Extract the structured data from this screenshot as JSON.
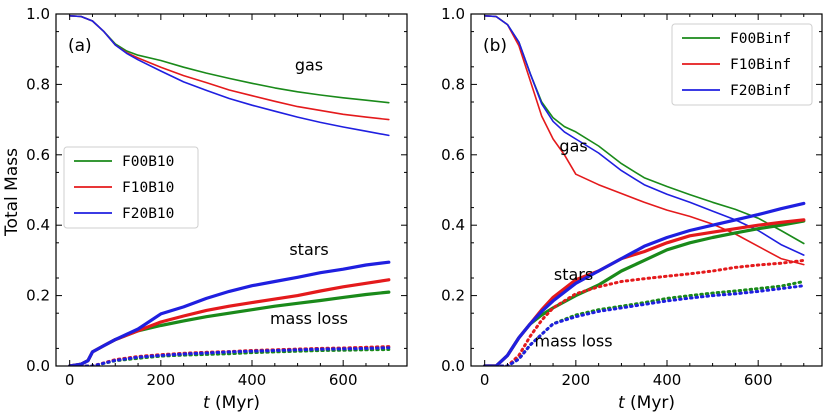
{
  "y_axis_label": "Total Mass",
  "colors": {
    "F00": "#1a8a1a",
    "F10": "#e41a1c",
    "F20": "#1f1fe0"
  },
  "chart_data": [
    {
      "type": "line",
      "panel_label": "(a)",
      "xlabel_var": "t",
      "xlabel_unit": " (Myr)",
      "ylabel": "Total Mass",
      "xlim": [
        -30,
        740
      ],
      "ylim": [
        0.0,
        1.0
      ],
      "xticks": [
        0,
        200,
        400,
        600
      ],
      "yticks": [
        0.0,
        0.2,
        0.4,
        0.6,
        0.8,
        1.0
      ],
      "legend": {
        "placement": "center-left",
        "entries": [
          "F00B10",
          "F10B10",
          "F20B10"
        ]
      },
      "annotations": [
        {
          "text": "gas",
          "x": 525,
          "y": 0.84
        },
        {
          "text": "stars",
          "x": 525,
          "y": 0.315
        },
        {
          "text": "mass loss",
          "x": 525,
          "y": 0.12
        }
      ],
      "series": [
        {
          "name": "F00B10 gas",
          "key": "F00",
          "style": "thin",
          "x": [
            0,
            25,
            50,
            75,
            100,
            125,
            150,
            200,
            250,
            300,
            350,
            400,
            450,
            500,
            550,
            600,
            650,
            700
          ],
          "y": [
            0.995,
            0.993,
            0.98,
            0.95,
            0.915,
            0.895,
            0.883,
            0.868,
            0.849,
            0.832,
            0.817,
            0.803,
            0.79,
            0.779,
            0.77,
            0.762,
            0.755,
            0.748
          ]
        },
        {
          "name": "F10B10 gas",
          "key": "F10",
          "style": "thin",
          "x": [
            0,
            25,
            50,
            75,
            100,
            125,
            150,
            200,
            250,
            300,
            350,
            400,
            450,
            500,
            550,
            600,
            650,
            700
          ],
          "y": [
            0.995,
            0.993,
            0.98,
            0.95,
            0.912,
            0.89,
            0.875,
            0.849,
            0.825,
            0.805,
            0.784,
            0.768,
            0.752,
            0.737,
            0.726,
            0.715,
            0.707,
            0.7
          ]
        },
        {
          "name": "F20B10 gas",
          "key": "F20",
          "style": "thin",
          "x": [
            0,
            25,
            50,
            75,
            100,
            125,
            150,
            200,
            250,
            300,
            350,
            400,
            450,
            500,
            550,
            600,
            650,
            700
          ],
          "y": [
            0.995,
            0.993,
            0.98,
            0.95,
            0.912,
            0.888,
            0.87,
            0.838,
            0.807,
            0.783,
            0.76,
            0.741,
            0.724,
            0.707,
            0.692,
            0.679,
            0.667,
            0.655
          ]
        },
        {
          "name": "F00B10 stars",
          "key": "F00",
          "style": "thick",
          "x": [
            0,
            25,
            40,
            50,
            75,
            100,
            150,
            200,
            250,
            300,
            350,
            400,
            450,
            500,
            550,
            600,
            650,
            700
          ],
          "y": [
            0.0,
            0.005,
            0.015,
            0.04,
            0.058,
            0.075,
            0.1,
            0.115,
            0.128,
            0.14,
            0.15,
            0.16,
            0.17,
            0.178,
            0.186,
            0.195,
            0.203,
            0.21
          ]
        },
        {
          "name": "F10B10 stars",
          "key": "F10",
          "style": "thick",
          "x": [
            0,
            25,
            40,
            50,
            75,
            100,
            150,
            200,
            250,
            300,
            350,
            400,
            450,
            500,
            550,
            600,
            650,
            700
          ],
          "y": [
            0.0,
            0.005,
            0.015,
            0.04,
            0.058,
            0.075,
            0.1,
            0.125,
            0.142,
            0.158,
            0.17,
            0.18,
            0.19,
            0.2,
            0.213,
            0.225,
            0.235,
            0.245
          ]
        },
        {
          "name": "F20B10 stars",
          "key": "F20",
          "style": "thick",
          "x": [
            0,
            25,
            40,
            50,
            75,
            100,
            150,
            200,
            250,
            300,
            350,
            400,
            450,
            500,
            550,
            600,
            650,
            700
          ],
          "y": [
            0.0,
            0.005,
            0.015,
            0.04,
            0.058,
            0.075,
            0.105,
            0.148,
            0.168,
            0.192,
            0.212,
            0.228,
            0.24,
            0.252,
            0.265,
            0.275,
            0.287,
            0.295
          ]
        },
        {
          "name": "F00B10 mass loss",
          "key": "F00",
          "style": "dotted",
          "x": [
            0,
            50,
            100,
            150,
            200,
            250,
            300,
            350,
            400,
            450,
            500,
            550,
            600,
            650,
            700
          ],
          "y": [
            0.0,
            0.0,
            0.015,
            0.022,
            0.028,
            0.031,
            0.033,
            0.035,
            0.038,
            0.04,
            0.042,
            0.044,
            0.045,
            0.046,
            0.047
          ]
        },
        {
          "name": "F10B10 mass loss",
          "key": "F10",
          "style": "dotted",
          "x": [
            0,
            50,
            100,
            150,
            200,
            250,
            300,
            350,
            400,
            450,
            500,
            550,
            600,
            650,
            700
          ],
          "y": [
            0.0,
            0.0,
            0.018,
            0.027,
            0.032,
            0.036,
            0.039,
            0.041,
            0.044,
            0.046,
            0.048,
            0.05,
            0.051,
            0.053,
            0.055
          ]
        },
        {
          "name": "F20B10 mass loss",
          "key": "F20",
          "style": "dotted",
          "x": [
            0,
            50,
            100,
            150,
            200,
            250,
            300,
            350,
            400,
            450,
            500,
            550,
            600,
            650,
            700
          ],
          "y": [
            0.0,
            0.0,
            0.016,
            0.025,
            0.03,
            0.034,
            0.037,
            0.04,
            0.042,
            0.044,
            0.046,
            0.048,
            0.049,
            0.05,
            0.052
          ]
        }
      ]
    },
    {
      "type": "line",
      "panel_label": "(b)",
      "xlabel_var": "t",
      "xlabel_unit": " (Myr)",
      "ylabel": "",
      "xlim": [
        -30,
        740
      ],
      "ylim": [
        0.0,
        1.0
      ],
      "xticks": [
        0,
        200,
        400,
        600
      ],
      "yticks": [
        0.0,
        0.2,
        0.4,
        0.6,
        0.8,
        1.0
      ],
      "legend": {
        "placement": "top-right",
        "entries": [
          "F00Binf",
          "F10Binf",
          "F20Binf"
        ]
      },
      "annotations": [
        {
          "text": "gas",
          "x": 195,
          "y": 0.61
        },
        {
          "text": "stars",
          "x": 195,
          "y": 0.245
        },
        {
          "text": "mass loss",
          "x": 195,
          "y": 0.055
        }
      ],
      "series": [
        {
          "name": "F00Binf gas",
          "key": "F00",
          "style": "thin",
          "x": [
            0,
            25,
            50,
            75,
            100,
            125,
            150,
            175,
            200,
            250,
            300,
            350,
            400,
            450,
            500,
            550,
            600,
            650,
            700
          ],
          "y": [
            0.995,
            0.993,
            0.97,
            0.92,
            0.83,
            0.75,
            0.705,
            0.68,
            0.665,
            0.625,
            0.575,
            0.535,
            0.51,
            0.487,
            0.465,
            0.445,
            0.42,
            0.385,
            0.348
          ]
        },
        {
          "name": "F10Binf gas",
          "key": "F10",
          "style": "thin",
          "x": [
            0,
            25,
            50,
            75,
            100,
            125,
            150,
            175,
            200,
            250,
            300,
            350,
            400,
            450,
            500,
            550,
            600,
            650,
            700
          ],
          "y": [
            0.995,
            0.993,
            0.97,
            0.91,
            0.81,
            0.71,
            0.645,
            0.6,
            0.545,
            0.515,
            0.49,
            0.465,
            0.443,
            0.425,
            0.403,
            0.375,
            0.34,
            0.305,
            0.288
          ]
        },
        {
          "name": "F20Binf gas",
          "key": "F20",
          "style": "thin",
          "x": [
            0,
            25,
            50,
            75,
            100,
            125,
            150,
            175,
            200,
            250,
            300,
            350,
            400,
            450,
            500,
            550,
            600,
            650,
            700
          ],
          "y": [
            0.995,
            0.993,
            0.97,
            0.92,
            0.83,
            0.745,
            0.695,
            0.665,
            0.645,
            0.605,
            0.555,
            0.515,
            0.488,
            0.465,
            0.44,
            0.415,
            0.385,
            0.345,
            0.315
          ]
        },
        {
          "name": "F00Binf stars",
          "key": "F00",
          "style": "thick",
          "x": [
            0,
            25,
            50,
            75,
            100,
            125,
            150,
            200,
            250,
            300,
            350,
            400,
            450,
            500,
            550,
            600,
            650,
            700
          ],
          "y": [
            0.0,
            0.0,
            0.03,
            0.08,
            0.12,
            0.145,
            0.165,
            0.2,
            0.23,
            0.27,
            0.3,
            0.33,
            0.35,
            0.365,
            0.378,
            0.39,
            0.4,
            0.412
          ]
        },
        {
          "name": "F10Binf stars",
          "key": "F10",
          "style": "thick",
          "x": [
            0,
            25,
            50,
            75,
            100,
            125,
            150,
            200,
            250,
            300,
            350,
            400,
            450,
            500,
            550,
            600,
            650,
            700
          ],
          "y": [
            0.0,
            0.0,
            0.03,
            0.08,
            0.12,
            0.16,
            0.195,
            0.245,
            0.27,
            0.305,
            0.325,
            0.35,
            0.37,
            0.38,
            0.39,
            0.4,
            0.408,
            0.415
          ]
        },
        {
          "name": "F20Binf stars",
          "key": "F20",
          "style": "thick",
          "x": [
            0,
            25,
            50,
            75,
            100,
            125,
            150,
            200,
            250,
            300,
            350,
            400,
            450,
            500,
            550,
            600,
            650,
            700
          ],
          "y": [
            0.0,
            0.0,
            0.03,
            0.08,
            0.12,
            0.155,
            0.185,
            0.235,
            0.27,
            0.305,
            0.34,
            0.365,
            0.385,
            0.4,
            0.415,
            0.43,
            0.447,
            0.462
          ]
        },
        {
          "name": "F00Binf mass loss",
          "key": "F00",
          "style": "dotted",
          "x": [
            0,
            50,
            75,
            100,
            125,
            150,
            200,
            250,
            300,
            350,
            400,
            450,
            500,
            550,
            600,
            650,
            700
          ],
          "y": [
            0.0,
            0.0,
            0.02,
            0.06,
            0.09,
            0.12,
            0.145,
            0.16,
            0.17,
            0.18,
            0.192,
            0.2,
            0.207,
            0.213,
            0.22,
            0.227,
            0.24
          ]
        },
        {
          "name": "F10Binf mass loss",
          "key": "F10",
          "style": "dotted",
          "x": [
            0,
            50,
            75,
            100,
            125,
            150,
            200,
            250,
            300,
            350,
            400,
            450,
            500,
            550,
            600,
            650,
            700
          ],
          "y": [
            0.0,
            0.0,
            0.03,
            0.085,
            0.13,
            0.165,
            0.205,
            0.225,
            0.24,
            0.248,
            0.255,
            0.262,
            0.27,
            0.28,
            0.287,
            0.292,
            0.3
          ]
        },
        {
          "name": "F20Binf mass loss",
          "key": "F20",
          "style": "dotted",
          "x": [
            0,
            50,
            75,
            100,
            125,
            150,
            200,
            250,
            300,
            350,
            400,
            450,
            500,
            550,
            600,
            650,
            700
          ],
          "y": [
            0.0,
            0.0,
            0.02,
            0.06,
            0.09,
            0.12,
            0.14,
            0.155,
            0.165,
            0.175,
            0.185,
            0.193,
            0.2,
            0.205,
            0.212,
            0.22,
            0.228
          ]
        }
      ]
    }
  ]
}
